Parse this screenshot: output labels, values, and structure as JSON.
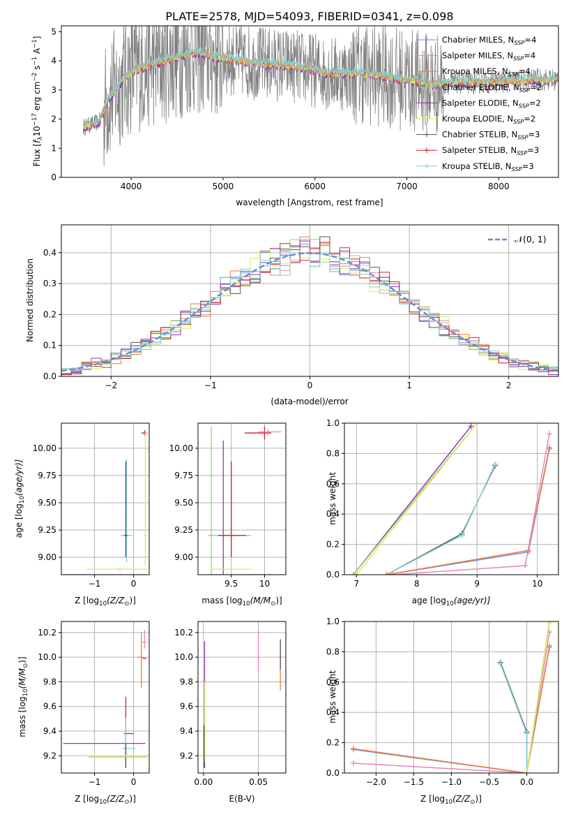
{
  "page": {
    "title": "PLATE=2578, MJD=54093, FIBERID=0341, z=0.098"
  },
  "colors": {
    "chabrier_miles": "#6c8ee6",
    "salpeter_miles": "#e484bf",
    "kroupa_miles": "#ef7b3c",
    "chabrier_elodie": "#9fd06f",
    "salpeter_elodie": "#9632b8",
    "kroupa_elodie": "#d7ef5b",
    "chabrier_stelib": "#555555",
    "salpeter_stelib": "#cc2222",
    "kroupa_stelib": "#7fd3d8",
    "data": "#808080",
    "normal": "#5b8fd6",
    "grid": "#b0b0b0"
  },
  "chart_data": [
    {
      "id": "spectrum",
      "type": "line",
      "title": "PLATE=2578, MJD=54093, FIBERID=0341, z=0.098",
      "xlabel": "wavelength [Angstrom, rest frame]",
      "ylabel_parts": [
        "Flux [",
        "f",
        "λ",
        "10",
        "−17",
        " erg cm",
        "−2",
        " s",
        "−1",
        " A",
        "−1",
        "]"
      ],
      "xlim": [
        3240,
        8650
      ],
      "ylim": [
        0,
        5.2
      ],
      "xticks": [
        4000,
        5000,
        6000,
        7000,
        8000
      ],
      "yticks": [
        0,
        1,
        2,
        3,
        4,
        5
      ],
      "grid": false,
      "legend_position": "right",
      "legend": [
        {
          "name": "Chabrier MILES, N",
          "sub": "SSP",
          "suffix": "=4",
          "color": "#6c8ee6"
        },
        {
          "name": "Salpeter MILES, N",
          "sub": "SSP",
          "suffix": "=4",
          "color": "#e484bf"
        },
        {
          "name": "Kroupa MILES, N",
          "sub": "SSP",
          "suffix": "=4",
          "color": "#ef7b3c"
        },
        {
          "name": "Chabrier ELODIE, N",
          "sub": "SSP",
          "suffix": "=2",
          "color": "#9fd06f"
        },
        {
          "name": "Salpeter ELODIE, N",
          "sub": "SSP",
          "suffix": "=2",
          "color": "#9632b8"
        },
        {
          "name": "Kroupa ELODIE, N",
          "sub": "SSP",
          "suffix": "=2",
          "color": "#d7ef5b"
        },
        {
          "name": "Chabrier STELIB, N",
          "sub": "SSP",
          "suffix": "=3",
          "color": "#555555"
        },
        {
          "name": "Salpeter STELIB, N",
          "sub": "SSP",
          "suffix": "=3",
          "color": "#cc2222"
        },
        {
          "name": "Kroupa STELIB, N",
          "sub": "SSP",
          "suffix": "=3",
          "color": "#7fd3d8"
        }
      ],
      "model_trend": [
        [
          3500,
          1.75
        ],
        [
          3650,
          1.9
        ],
        [
          3750,
          2.7
        ],
        [
          3850,
          3.1
        ],
        [
          3950,
          3.5
        ],
        [
          4050,
          3.7
        ],
        [
          4200,
          3.85
        ],
        [
          4350,
          4.0
        ],
        [
          4500,
          4.15
        ],
        [
          4700,
          4.3
        ],
        [
          4900,
          4.15
        ],
        [
          5100,
          4.05
        ],
        [
          5300,
          3.95
        ],
        [
          5500,
          3.9
        ],
        [
          5700,
          3.85
        ],
        [
          5900,
          3.75
        ],
        [
          6100,
          3.6
        ],
        [
          6300,
          3.55
        ],
        [
          6500,
          3.6
        ],
        [
          6700,
          3.5
        ],
        [
          6900,
          3.4
        ],
        [
          7100,
          3.3
        ],
        [
          7300,
          3.2
        ],
        [
          7500,
          3.25
        ],
        [
          7800,
          3.25
        ],
        [
          8100,
          3.3
        ],
        [
          8400,
          3.35
        ],
        [
          8650,
          3.35
        ]
      ]
    },
    {
      "id": "residuals",
      "type": "line",
      "xlabel": "(data-model)/error",
      "ylabel": "Normed distribution",
      "xlim": [
        -2.5,
        2.5
      ],
      "ylim": [
        0,
        0.49
      ],
      "xticks": [
        -2,
        -1,
        0,
        1,
        2
      ],
      "yticks": [
        0.0,
        0.1,
        0.2,
        0.3,
        0.4
      ],
      "grid": true,
      "legend_position": "upper right",
      "normal_label": "𝒩(0, 1)",
      "series_note": "nine normalized residual histograms (step lines), one per model"
    },
    {
      "id": "age_vs_Z",
      "type": "scatter",
      "xlabel_parts": [
        "Z [log",
        "10",
        "(Z/Z",
        "⊙",
        ")]"
      ],
      "ylabel_parts": [
        "age  [log",
        "10",
        "(age/yr)]"
      ],
      "xlim": [
        -1.85,
        0.4
      ],
      "ylim": [
        8.84,
        10.23
      ],
      "xticks": [
        -1,
        0
      ],
      "yticks": [
        9.0,
        9.25,
        9.5,
        9.75,
        10.0
      ],
      "ytick_labels": [
        "9.00",
        "9.25",
        "9.50",
        "9.75",
        "10.00"
      ],
      "grid": true,
      "points": [
        {
          "x": 0.3,
          "y": 10.14,
          "xe": [
            0.1,
            0.05
          ],
          "ye": [
            0.03,
            0.03
          ],
          "c": "#e484bf"
        },
        {
          "x": 0.28,
          "y": 10.14,
          "xe": [
            0.08,
            0.04
          ],
          "ye": [
            0.02,
            0.02
          ],
          "c": "#cc2222"
        },
        {
          "x": 0.3,
          "y": 9.2,
          "xe": [
            0.05,
            0.03
          ],
          "ye": [
            0.28,
            0.95
          ],
          "c": "#d7ef5b"
        },
        {
          "x": -0.18,
          "y": 9.2,
          "xe": [
            0.15,
            0.15
          ],
          "ye": [
            0.25,
            0.7
          ],
          "c": "#7fd3d8"
        },
        {
          "x": -0.2,
          "y": 9.2,
          "xe": [
            0.05,
            0.05
          ],
          "ye": [
            0.2,
            0.68
          ],
          "c": "#555555"
        },
        {
          "x": -0.35,
          "y": 8.89,
          "xe": [
            0.85,
            0.7
          ],
          "ye": [
            0.02,
            0.02
          ],
          "c": "#d7ef5b"
        },
        {
          "x": -0.3,
          "y": 8.84,
          "xe": [
            1.5,
            0.6
          ],
          "ye": [
            0.0,
            0.0
          ],
          "c": "#9632b8"
        }
      ]
    },
    {
      "id": "age_vs_mass",
      "type": "scatter",
      "xlabel_parts": [
        "mass [log",
        "10",
        "(M/M",
        "⊙",
        ")]"
      ],
      "xlim": [
        9.0,
        10.32
      ],
      "ylim": [
        8.84,
        10.23
      ],
      "xticks": [
        9.5,
        10.0
      ],
      "yticks": [
        9.0,
        9.25,
        9.5,
        9.75,
        10.0
      ],
      "ytick_labels": [
        "9.00",
        "9.25",
        "9.50",
        "9.75",
        "10.00"
      ],
      "grid": true,
      "points": [
        {
          "x": 10.0,
          "y": 10.14,
          "xe": [
            0.3,
            0.1
          ],
          "ye": [
            0.06,
            0.06
          ],
          "c": "#cc2222"
        },
        {
          "x": 10.05,
          "y": 10.15,
          "xe": [
            0.15,
            0.2
          ],
          "ye": [
            0.03,
            0.03
          ],
          "c": "#e484bf"
        },
        {
          "x": 9.2,
          "y": 9.2,
          "xe": [
            0.05,
            0.05
          ],
          "ye": [
            0.8,
            1.0
          ],
          "c": "#9fd06f"
        },
        {
          "x": 9.38,
          "y": 9.2,
          "xe": [
            0.05,
            0.05
          ],
          "ye": [
            0.37,
            0.87
          ],
          "c": "#9632b8"
        },
        {
          "x": 9.5,
          "y": 9.2,
          "xe": [
            0.3,
            0.3
          ],
          "ye": [
            0.0,
            0.0
          ],
          "c": "#7fd3d8"
        },
        {
          "x": 9.5,
          "y": 9.2,
          "xe": [
            0.2,
            0.22
          ],
          "ye": [
            0.2,
            0.68
          ],
          "c": "#cc2222"
        },
        {
          "x": 9.5,
          "y": 8.89,
          "xe": [
            0.3,
            0.3
          ],
          "ye": [
            0.0,
            0.0
          ],
          "c": "#d7ef5b"
        },
        {
          "x": 9.5,
          "y": 8.84,
          "xe": [
            0.3,
            0.6
          ],
          "ye": [
            0.0,
            0.0
          ],
          "c": "#9632b8"
        }
      ]
    },
    {
      "id": "weight_vs_age",
      "type": "line",
      "xlabel_parts": [
        "age  [log",
        "10",
        "(age/yr)]"
      ],
      "ylabel": "mass weight",
      "xlim": [
        6.8,
        10.35
      ],
      "ylim": [
        0,
        1.0
      ],
      "xticks": [
        7,
        8,
        9,
        10
      ],
      "yticks": [
        0.0,
        0.2,
        0.4,
        0.6,
        0.8,
        1.0
      ],
      "grid": true,
      "series": [
        {
          "c": "#9632b8",
          "x": [
            6.95,
            8.9
          ],
          "y": [
            0.0,
            0.98
          ]
        },
        {
          "c": "#9fd06f",
          "x": [
            6.95,
            9.0
          ],
          "y": [
            0.0,
            1.0
          ]
        },
        {
          "c": "#d7ef5b",
          "x": [
            7.0,
            9.0
          ],
          "y": [
            0.0,
            1.0
          ]
        },
        {
          "c": "#555555",
          "x": [
            7.5,
            8.75,
            9.3
          ],
          "y": [
            0.0,
            0.27,
            0.72
          ]
        },
        {
          "c": "#7fd3d8",
          "x": [
            7.5,
            8.75,
            9.3
          ],
          "y": [
            0.0,
            0.26,
            0.73
          ]
        },
        {
          "c": "#6c8ee6",
          "x": [
            7.5,
            9.85,
            10.2
          ],
          "y": [
            0.0,
            0.15,
            0.83
          ]
        },
        {
          "c": "#ef7b3c",
          "x": [
            7.5,
            9.85,
            10.2
          ],
          "y": [
            0.0,
            0.16,
            0.84
          ]
        },
        {
          "c": "#e484bf",
          "x": [
            7.6,
            9.8,
            10.2
          ],
          "y": [
            0.0,
            0.06,
            0.93
          ]
        }
      ]
    },
    {
      "id": "mass_vs_Z",
      "type": "scatter",
      "xlabel_parts": [
        "Z [log",
        "10",
        "(Z/Z",
        "⊙",
        ")]"
      ],
      "ylabel_parts": [
        "mass [log",
        "10",
        "(M/M",
        "⊙",
        ")]"
      ],
      "xlim": [
        -1.85,
        0.4
      ],
      "ylim": [
        9.06,
        10.29
      ],
      "xticks": [
        -1,
        0
      ],
      "yticks": [
        9.2,
        9.4,
        9.6,
        9.8,
        10.0,
        10.2
      ],
      "ytick_labels": [
        "9.2",
        "9.4",
        "9.6",
        "9.8",
        "10.0",
        "10.2"
      ],
      "grid": true,
      "points": [
        {
          "x": 0.28,
          "y": 10.12,
          "xe": [
            0.05,
            0.05
          ],
          "ye": [
            0.05,
            0.1
          ],
          "c": "#e484bf"
        },
        {
          "x": 0.2,
          "y": 10.0,
          "xe": [
            0.1,
            0.05
          ],
          "ye": [
            0.25,
            0.2
          ],
          "c": "#ef7b3c"
        },
        {
          "x": 0.28,
          "y": 9.99,
          "xe": [
            0.05,
            0.05
          ],
          "ye": [
            0.0,
            0.0
          ],
          "c": "#cc2222"
        },
        {
          "x": -0.2,
          "y": 9.38,
          "xe": [
            0.05,
            0.2
          ],
          "ye": [
            0.28,
            0.3
          ],
          "c": "#cc2222"
        },
        {
          "x": -0.2,
          "y": 9.3,
          "xe": [
            1.6,
            0.5
          ],
          "ye": [
            0.0,
            0.0
          ],
          "c": "#9632b8"
        },
        {
          "x": -0.2,
          "y": 9.26,
          "xe": [
            0.08,
            0.25
          ],
          "ye": [
            0.1,
            0.25
          ],
          "c": "#7fd3d8"
        },
        {
          "x": -0.2,
          "y": 9.2,
          "xe": [
            0.05,
            0.05
          ],
          "ye": [
            0.1,
            0.1
          ],
          "c": "#555555"
        },
        {
          "x": -0.35,
          "y": 9.2,
          "xe": [
            0.8,
            0.7
          ],
          "ye": [
            0.0,
            0.0
          ],
          "c": "#d7ef5b"
        },
        {
          "x": -0.35,
          "y": 9.19,
          "xe": [
            0.8,
            0.7
          ],
          "ye": [
            0.0,
            0.0
          ],
          "c": "#9fd06f"
        }
      ]
    },
    {
      "id": "mass_vs_ebv",
      "type": "scatter",
      "xlabel": "E(B-V)",
      "xlim": [
        -0.005,
        0.075
      ],
      "ylim": [
        9.06,
        10.29
      ],
      "xticks": [
        0.0,
        0.05
      ],
      "xtick_labels": [
        "0.00",
        "0.05"
      ],
      "yticks": [
        9.2,
        9.4,
        9.6,
        9.8,
        10.0,
        10.2
      ],
      "ytick_labels": [
        "9.2",
        "9.4",
        "9.6",
        "9.8",
        "10.0",
        "10.2"
      ],
      "grid": true,
      "points": [
        {
          "x": 0.001,
          "y": 9.7,
          "xe": [
            0,
            0
          ],
          "ye": [
            0.6,
            0.43
          ],
          "c": "#9632b8"
        },
        {
          "x": 0.0012,
          "y": 9.6,
          "xe": [
            0,
            0
          ],
          "ye": [
            0.45,
            0.2
          ],
          "c": "#d7ef5b"
        },
        {
          "x": 0.0005,
          "y": 9.35,
          "xe": [
            0,
            0
          ],
          "ye": [
            0.25,
            0.1
          ],
          "c": "#555555"
        },
        {
          "x": 0.05,
          "y": 10.1,
          "xe": [
            0,
            0
          ],
          "ye": [
            0.22,
            0.12
          ],
          "c": "#e484bf"
        },
        {
          "x": 0.07,
          "y": 9.95,
          "xe": [
            0,
            0
          ],
          "ye": [
            0.22,
            0.2
          ],
          "c": "#ef7b3c"
        },
        {
          "x": 0.07,
          "y": 10.0,
          "xe": [
            0,
            0
          ],
          "ye": [
            0.1,
            0.14
          ],
          "c": "#555555"
        }
      ]
    },
    {
      "id": "weight_vs_Z",
      "type": "line",
      "xlabel_parts": [
        "Z [log",
        "10",
        "(Z/Z",
        "⊙",
        ")]"
      ],
      "ylabel": "mass weight",
      "xlim": [
        -2.42,
        0.42
      ],
      "ylim": [
        0,
        1.0
      ],
      "xticks": [
        -2.0,
        -1.5,
        -1.0,
        -0.5,
        0.0
      ],
      "xtick_labels": [
        "−2.0",
        "−1.5",
        "−1.0",
        "−0.5",
        "0.0"
      ],
      "yticks": [
        0.0,
        0.2,
        0.4,
        0.6,
        0.8,
        1.0
      ],
      "grid": true,
      "series": [
        {
          "c": "#555555",
          "x": [
            -0.35,
            0.0,
            0.0
          ],
          "y": [
            0.73,
            0.27,
            0.0
          ]
        },
        {
          "c": "#7fd3d8",
          "x": [
            -0.35,
            0.0,
            0.0
          ],
          "y": [
            0.72,
            0.26,
            0.0
          ]
        },
        {
          "c": "#6c8ee6",
          "x": [
            -2.3,
            0.0,
            0.3
          ],
          "y": [
            0.155,
            0.0,
            0.83
          ]
        },
        {
          "c": "#ef7b3c",
          "x": [
            -2.3,
            0.0,
            0.3
          ],
          "y": [
            0.16,
            0.0,
            0.84
          ]
        },
        {
          "c": "#e484bf",
          "x": [
            -2.3,
            0.0,
            0.3
          ],
          "y": [
            0.065,
            0.0,
            0.93
          ]
        },
        {
          "c": "#9fd06f",
          "x": [
            0.0,
            0.3
          ],
          "y": [
            0.0,
            1.0
          ]
        },
        {
          "c": "#d7ef5b",
          "x": [
            0.0,
            0.3
          ],
          "y": [
            0.0,
            0.99
          ]
        }
      ]
    }
  ]
}
